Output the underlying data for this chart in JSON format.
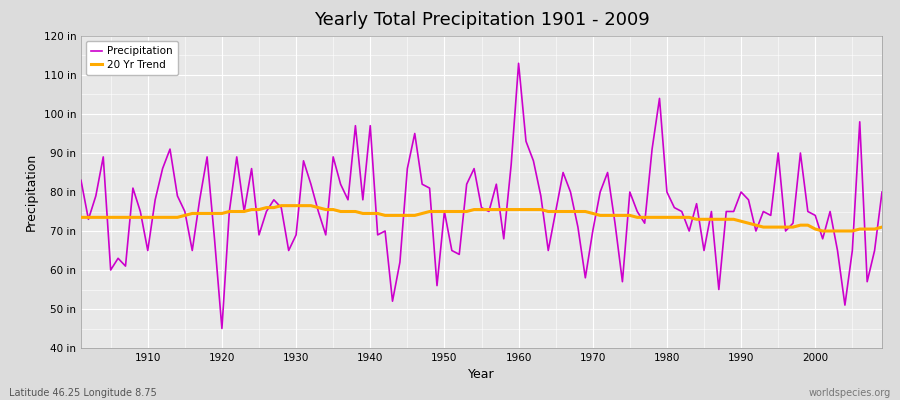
{
  "title": "Yearly Total Precipitation 1901 - 2009",
  "xlabel": "Year",
  "ylabel": "Precipitation",
  "ylim": [
    40,
    120
  ],
  "yticks": [
    40,
    50,
    60,
    70,
    80,
    90,
    100,
    110,
    120
  ],
  "xlim": [
    1901,
    2009
  ],
  "xticks": [
    1910,
    1920,
    1930,
    1940,
    1950,
    1960,
    1970,
    1980,
    1990,
    2000
  ],
  "precip_color": "#cc00cc",
  "trend_color": "#ffaa00",
  "bg_color": "#dcdcdc",
  "plot_bg_color": "#e8e8e8",
  "grid_color": "#ffffff",
  "footer_left": "Latitude 46.25 Longitude 8.75",
  "footer_right": "worldspecies.org",
  "legend_labels": [
    "Precipitation",
    "20 Yr Trend"
  ],
  "years": [
    1901,
    1902,
    1903,
    1904,
    1905,
    1906,
    1907,
    1908,
    1909,
    1910,
    1911,
    1912,
    1913,
    1914,
    1915,
    1916,
    1917,
    1918,
    1919,
    1920,
    1921,
    1922,
    1923,
    1924,
    1925,
    1926,
    1927,
    1928,
    1929,
    1930,
    1931,
    1932,
    1933,
    1934,
    1935,
    1936,
    1937,
    1938,
    1939,
    1940,
    1941,
    1942,
    1943,
    1944,
    1945,
    1946,
    1947,
    1948,
    1949,
    1950,
    1951,
    1952,
    1953,
    1954,
    1955,
    1956,
    1957,
    1958,
    1959,
    1960,
    1961,
    1962,
    1963,
    1964,
    1965,
    1966,
    1967,
    1968,
    1969,
    1970,
    1971,
    1972,
    1973,
    1974,
    1975,
    1976,
    1977,
    1978,
    1979,
    1980,
    1981,
    1982,
    1983,
    1984,
    1985,
    1986,
    1987,
    1988,
    1989,
    1990,
    1991,
    1992,
    1993,
    1994,
    1995,
    1996,
    1997,
    1998,
    1999,
    2000,
    2001,
    2002,
    2003,
    2004,
    2005,
    2006,
    2007,
    2008,
    2009
  ],
  "precip": [
    83,
    73,
    79,
    89,
    60,
    63,
    61,
    81,
    75,
    65,
    78,
    86,
    91,
    79,
    75,
    65,
    78,
    89,
    68,
    45,
    75,
    89,
    75,
    86,
    69,
    75,
    78,
    76,
    65,
    69,
    88,
    82,
    75,
    69,
    89,
    82,
    78,
    97,
    78,
    97,
    69,
    70,
    52,
    62,
    86,
    95,
    82,
    81,
    56,
    75,
    65,
    64,
    82,
    86,
    76,
    75,
    82,
    68,
    87,
    113,
    93,
    88,
    79,
    65,
    75,
    85,
    80,
    71,
    58,
    70,
    80,
    85,
    72,
    57,
    80,
    75,
    72,
    91,
    104,
    80,
    76,
    75,
    70,
    77,
    65,
    75,
    55,
    75,
    75,
    80,
    78,
    70,
    75,
    74,
    90,
    70,
    72,
    90,
    75,
    74,
    68,
    75,
    65,
    51,
    65,
    98,
    57,
    65,
    80
  ],
  "trend": [
    73.5,
    73.5,
    73.5,
    73.5,
    73.5,
    73.5,
    73.5,
    73.5,
    73.5,
    73.5,
    73.5,
    73.5,
    73.5,
    73.5,
    74.0,
    74.5,
    74.5,
    74.5,
    74.5,
    74.5,
    75.0,
    75.0,
    75.0,
    75.5,
    75.5,
    76.0,
    76.0,
    76.5,
    76.5,
    76.5,
    76.5,
    76.5,
    76.0,
    75.5,
    75.5,
    75.0,
    75.0,
    75.0,
    74.5,
    74.5,
    74.5,
    74.0,
    74.0,
    74.0,
    74.0,
    74.0,
    74.5,
    75.0,
    75.0,
    75.0,
    75.0,
    75.0,
    75.0,
    75.5,
    75.5,
    75.5,
    75.5,
    75.5,
    75.5,
    75.5,
    75.5,
    75.5,
    75.5,
    75.0,
    75.0,
    75.0,
    75.0,
    75.0,
    75.0,
    74.5,
    74.0,
    74.0,
    74.0,
    74.0,
    74.0,
    73.5,
    73.5,
    73.5,
    73.5,
    73.5,
    73.5,
    73.5,
    73.5,
    73.0,
    73.0,
    73.0,
    73.0,
    73.0,
    73.0,
    72.5,
    72.0,
    71.5,
    71.0,
    71.0,
    71.0,
    71.0,
    71.0,
    71.5,
    71.5,
    70.5,
    70.0,
    70.0,
    70.0,
    70.0,
    70.0,
    70.5,
    70.5,
    70.5,
    71.0
  ]
}
